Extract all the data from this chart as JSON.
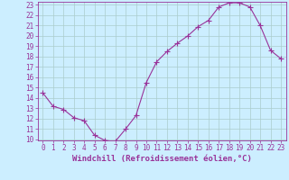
{
  "x_values": [
    0,
    1,
    2,
    3,
    4,
    5,
    6,
    7,
    8,
    9,
    10,
    11,
    12,
    13,
    14,
    15,
    16,
    17,
    18,
    19,
    20,
    21,
    22,
    23
  ],
  "y_values": [
    14.5,
    13.2,
    12.9,
    12.1,
    11.8,
    10.4,
    9.9,
    9.8,
    11.0,
    12.3,
    15.5,
    17.5,
    18.5,
    19.3,
    20.0,
    20.9,
    21.5,
    22.8,
    23.2,
    23.2,
    22.8,
    21.0,
    18.6,
    17.8
  ],
  "line_color": "#993399",
  "marker": "+",
  "marker_size": 4,
  "background_color": "#cceeff",
  "grid_color": "#aacccc",
  "xlabel": "Windchill (Refroidissement éolien,°C)",
  "xlabel_fontsize": 6.5,
  "tick_fontsize": 5.5,
  "ylim": [
    10,
    23
  ],
  "xlim": [
    -0.5,
    23.5
  ],
  "yticks": [
    10,
    11,
    12,
    13,
    14,
    15,
    16,
    17,
    18,
    19,
    20,
    21,
    22,
    23
  ],
  "xticks": [
    0,
    1,
    2,
    3,
    4,
    5,
    6,
    7,
    8,
    9,
    10,
    11,
    12,
    13,
    14,
    15,
    16,
    17,
    18,
    19,
    20,
    21,
    22,
    23
  ],
  "tick_color": "#993399",
  "label_color": "#993399",
  "spine_color": "#993399",
  "linewidth": 0.8
}
